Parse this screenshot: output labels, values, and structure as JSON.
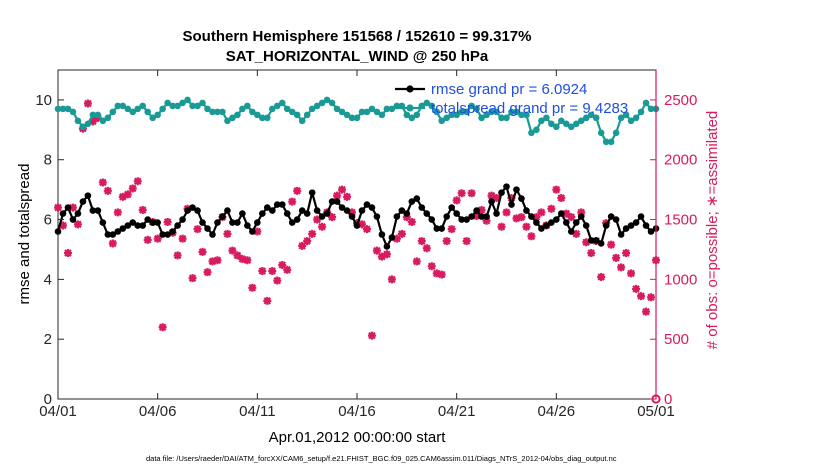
{
  "chart_data": {
    "type": "line",
    "title": "Southern Hemisphere 151568 / 152610 = 99.317%",
    "subtitle": "SAT_HORIZONTAL_WIND @ 250 hPa",
    "xlabel": "Apr.01,2012 00:00:00 start",
    "ylabel": "rmse and totalspread",
    "ylabel_right": "# of obs: o=possible; ∗=assimilated",
    "footnote": "data file: /Users/raeder/DAI/ATM_forcXX/CAM6_setup/f.e21.FHIST_BGC.f09_025.CAM6assim.011/Diags_NTrS_2012-04/obs_diag_output.nc",
    "x_ticks": [
      "04/01",
      "04/06",
      "04/11",
      "04/16",
      "04/21",
      "04/26",
      "05/01"
    ],
    "x_tick_days": [
      0,
      5,
      10,
      15,
      20,
      25,
      30
    ],
    "xlim": [
      0,
      30
    ],
    "ylim": [
      0,
      11
    ],
    "y_ticks": [
      0,
      2,
      4,
      6,
      8,
      10
    ],
    "ylim_right": [
      0,
      2750
    ],
    "y_ticks_right": [
      0,
      500,
      1000,
      1500,
      2000,
      2500
    ],
    "grid": false,
    "legend_position": "top-right",
    "colors": {
      "rmse": "#000000",
      "totalspread": "#1a9a94",
      "obs": "#d81b60",
      "legend_text": "#1f4fe0",
      "right_axis": "#d81b60"
    },
    "series": [
      {
        "name": "rmse grand pr = 6.0924",
        "axis": "left",
        "marker": "filled-circle",
        "x_days": [
          0.0,
          0.25,
          0.5,
          0.75,
          1.0,
          1.25,
          1.5,
          1.75,
          2.0,
          2.25,
          2.5,
          2.75,
          3.0,
          3.25,
          3.5,
          3.75,
          4.0,
          4.25,
          4.5,
          4.75,
          5.0,
          5.25,
          5.5,
          5.75,
          6.0,
          6.25,
          6.5,
          6.75,
          7.0,
          7.25,
          7.5,
          7.75,
          8.0,
          8.25,
          8.5,
          8.75,
          9.0,
          9.25,
          9.5,
          9.75,
          10.0,
          10.25,
          10.5,
          10.75,
          11.0,
          11.25,
          11.5,
          11.75,
          12.0,
          12.25,
          12.5,
          12.75,
          13.0,
          13.25,
          13.5,
          13.75,
          14.0,
          14.25,
          14.5,
          14.75,
          15.0,
          15.25,
          15.5,
          15.75,
          16.0,
          16.25,
          16.5,
          16.75,
          17.0,
          17.25,
          17.5,
          17.75,
          18.0,
          18.25,
          18.5,
          18.75,
          19.0,
          19.25,
          19.5,
          19.75,
          20.0,
          20.25,
          20.5,
          20.75,
          21.0,
          21.25,
          21.5,
          21.75,
          22.0,
          22.25,
          22.5,
          22.75,
          23.0,
          23.25,
          23.5,
          23.75,
          24.0,
          24.25,
          24.5,
          24.75,
          25.0,
          25.25,
          25.5,
          25.75,
          26.0,
          26.25,
          26.5,
          26.75,
          27.0,
          27.25,
          27.5,
          27.75,
          28.0,
          28.25,
          28.5,
          28.75,
          29.0,
          29.25,
          29.5,
          29.75,
          30.0
        ],
        "values": [
          5.6,
          6.2,
          6.4,
          6.0,
          6.2,
          6.6,
          6.8,
          6.3,
          6.3,
          5.9,
          5.5,
          5.5,
          5.6,
          5.7,
          5.8,
          5.9,
          5.8,
          5.8,
          6.0,
          5.9,
          5.9,
          5.5,
          5.5,
          5.6,
          5.8,
          6.0,
          6.3,
          6.4,
          6.3,
          5.9,
          5.7,
          5.5,
          5.9,
          6.1,
          6.3,
          5.9,
          5.9,
          6.2,
          5.8,
          5.6,
          5.9,
          6.2,
          6.4,
          6.3,
          6.5,
          6.5,
          6.2,
          5.9,
          6.0,
          6.3,
          6.2,
          6.9,
          6.3,
          6.1,
          6.2,
          6.6,
          6.6,
          6.4,
          6.3,
          6.1,
          5.8,
          6.3,
          6.5,
          6.4,
          6.1,
          5.5,
          5.1,
          5.4,
          6.1,
          6.3,
          6.2,
          6.6,
          6.7,
          6.4,
          6.2,
          6.0,
          5.7,
          5.7,
          6.1,
          6.4,
          6.2,
          6.0,
          6.0,
          6.1,
          6.3,
          6.1,
          6.1,
          6.6,
          6.2,
          6.9,
          7.1,
          6.5,
          7.0,
          6.7,
          6.3,
          6.1,
          5.9,
          5.7,
          5.8,
          5.9,
          6.0,
          6.2,
          5.9,
          5.6,
          5.9,
          6.1,
          5.8,
          5.3,
          5.3,
          5.2,
          5.8,
          6.1,
          6.0,
          5.5,
          5.7,
          5.8,
          5.9,
          6.1,
          5.8,
          5.6,
          5.7
        ]
      },
      {
        "name": "totalspread grand pr = 9.4283",
        "axis": "left",
        "marker": "filled-circle",
        "x_days": [
          0.0,
          0.25,
          0.5,
          0.75,
          1.0,
          1.25,
          1.5,
          1.75,
          2.0,
          2.25,
          2.5,
          2.75,
          3.0,
          3.25,
          3.5,
          3.75,
          4.0,
          4.25,
          4.5,
          4.75,
          5.0,
          5.25,
          5.5,
          5.75,
          6.0,
          6.25,
          6.5,
          6.75,
          7.0,
          7.25,
          7.5,
          7.75,
          8.0,
          8.25,
          8.5,
          8.75,
          9.0,
          9.25,
          9.5,
          9.75,
          10.0,
          10.25,
          10.5,
          10.75,
          11.0,
          11.25,
          11.5,
          11.75,
          12.0,
          12.25,
          12.5,
          12.75,
          13.0,
          13.25,
          13.5,
          13.75,
          14.0,
          14.25,
          14.5,
          14.75,
          15.0,
          15.25,
          15.5,
          15.75,
          16.0,
          16.25,
          16.5,
          16.75,
          17.0,
          17.25,
          17.5,
          17.75,
          18.0,
          18.25,
          18.5,
          18.75,
          19.0,
          19.25,
          19.5,
          19.75,
          20.0,
          20.25,
          20.5,
          20.75,
          21.0,
          21.25,
          21.5,
          21.75,
          22.0,
          22.25,
          22.5,
          22.75,
          23.0,
          23.25,
          23.5,
          23.75,
          24.0,
          24.25,
          24.5,
          24.75,
          25.0,
          25.25,
          25.5,
          25.75,
          26.0,
          26.25,
          26.5,
          26.75,
          27.0,
          27.25,
          27.5,
          27.75,
          28.0,
          28.25,
          28.5,
          28.75,
          29.0,
          29.25,
          29.5,
          29.75,
          30.0
        ],
        "values": [
          9.7,
          9.7,
          9.7,
          9.6,
          9.3,
          9.1,
          9.2,
          9.5,
          9.5,
          9.3,
          9.4,
          9.6,
          9.8,
          9.8,
          9.7,
          9.6,
          9.7,
          9.8,
          9.6,
          9.4,
          9.5,
          9.7,
          9.9,
          9.8,
          9.8,
          9.9,
          10.0,
          9.8,
          9.8,
          9.9,
          9.7,
          9.6,
          9.6,
          9.6,
          9.3,
          9.4,
          9.5,
          9.7,
          9.8,
          9.6,
          9.5,
          9.4,
          9.4,
          9.7,
          9.8,
          9.9,
          9.7,
          9.6,
          9.5,
          9.3,
          9.5,
          9.7,
          9.8,
          9.9,
          10.0,
          9.9,
          9.7,
          9.6,
          9.5,
          9.4,
          9.4,
          9.6,
          9.6,
          9.7,
          9.6,
          9.5,
          9.7,
          9.7,
          9.8,
          9.8,
          9.5,
          9.4,
          9.5,
          9.8,
          9.9,
          9.8,
          9.6,
          9.3,
          9.4,
          9.5,
          9.5,
          9.6,
          9.6,
          9.8,
          9.7,
          9.4,
          9.5,
          9.6,
          9.6,
          9.4,
          9.4,
          9.6,
          9.6,
          9.5,
          9.5,
          8.9,
          9.0,
          9.3,
          9.4,
          9.2,
          9.1,
          9.3,
          9.2,
          9.1,
          9.2,
          9.3,
          9.4,
          9.5,
          9.4,
          8.9,
          8.6,
          8.6,
          8.9,
          9.4,
          9.5,
          9.3,
          9.4,
          9.6,
          9.9,
          9.7,
          9.7
        ]
      },
      {
        "name": "obs assimilated",
        "axis": "right",
        "marker": "asterisk",
        "x_days": [
          0.0,
          0.25,
          0.5,
          0.75,
          1.0,
          1.25,
          1.5,
          1.75,
          2.0,
          2.25,
          2.5,
          2.75,
          3.0,
          3.25,
          3.5,
          3.75,
          4.0,
          4.25,
          4.5,
          4.75,
          5.0,
          5.25,
          5.5,
          5.75,
          6.0,
          6.25,
          6.5,
          6.75,
          7.0,
          7.25,
          7.5,
          7.75,
          8.0,
          8.25,
          8.5,
          8.75,
          9.0,
          9.25,
          9.5,
          9.75,
          10.0,
          10.25,
          10.5,
          10.75,
          11.0,
          11.25,
          11.5,
          11.75,
          12.0,
          12.25,
          12.5,
          12.75,
          13.0,
          13.25,
          13.5,
          13.75,
          14.0,
          14.25,
          14.5,
          14.75,
          15.0,
          15.25,
          15.5,
          15.75,
          16.0,
          16.25,
          16.5,
          16.75,
          17.0,
          17.25,
          17.5,
          17.75,
          18.0,
          18.25,
          18.5,
          18.75,
          19.0,
          19.25,
          19.5,
          19.75,
          20.0,
          20.25,
          20.5,
          20.75,
          21.0,
          21.25,
          21.5,
          21.75,
          22.0,
          22.25,
          22.5,
          22.75,
          23.0,
          23.25,
          23.5,
          23.75,
          24.0,
          24.25,
          24.5,
          24.75,
          25.0,
          25.25,
          25.5,
          25.75,
          26.0,
          26.25,
          26.5,
          26.75,
          27.0,
          27.25,
          27.5,
          27.75,
          28.0,
          28.25,
          28.5,
          28.75,
          29.0,
          29.25,
          29.5,
          29.75,
          30.0
        ],
        "values": [
          1600,
          1450,
          1220,
          1600,
          1460,
          2260,
          2470,
          2320,
          2350,
          1810,
          1740,
          1300,
          1560,
          1690,
          1710,
          1760,
          1820,
          1580,
          1330,
          1480,
          1340,
          600,
          1480,
          1390,
          1200,
          1340,
          1590,
          1010,
          1420,
          1230,
          1060,
          1150,
          1160,
          1520,
          1380,
          1240,
          1200,
          1170,
          1160,
          930,
          1400,
          1070,
          820,
          1070,
          990,
          1120,
          1080,
          1650,
          1740,
          1280,
          1320,
          1380,
          1500,
          1440,
          1560,
          1520,
          1700,
          1750,
          1690,
          1560,
          1470,
          1460,
          1420,
          530,
          1240,
          1190,
          1210,
          1000,
          1340,
          1380,
          1520,
          1480,
          1150,
          1320,
          1260,
          1110,
          1050,
          1040,
          1320,
          1420,
          1660,
          1720,
          1320,
          1720,
          1530,
          1580,
          1490,
          1700,
          1680,
          1440,
          1560,
          1680,
          1510,
          1520,
          1440,
          1360,
          1520,
          1560,
          1450,
          1590,
          1750,
          1680,
          1550,
          1520,
          1380,
          1560,
          1310,
          1220,
          1320,
          1020,
          1470,
          1290,
          1180,
          1100,
          1220,
          1050,
          920,
          860,
          730,
          850,
          1160
        ]
      }
    ]
  }
}
